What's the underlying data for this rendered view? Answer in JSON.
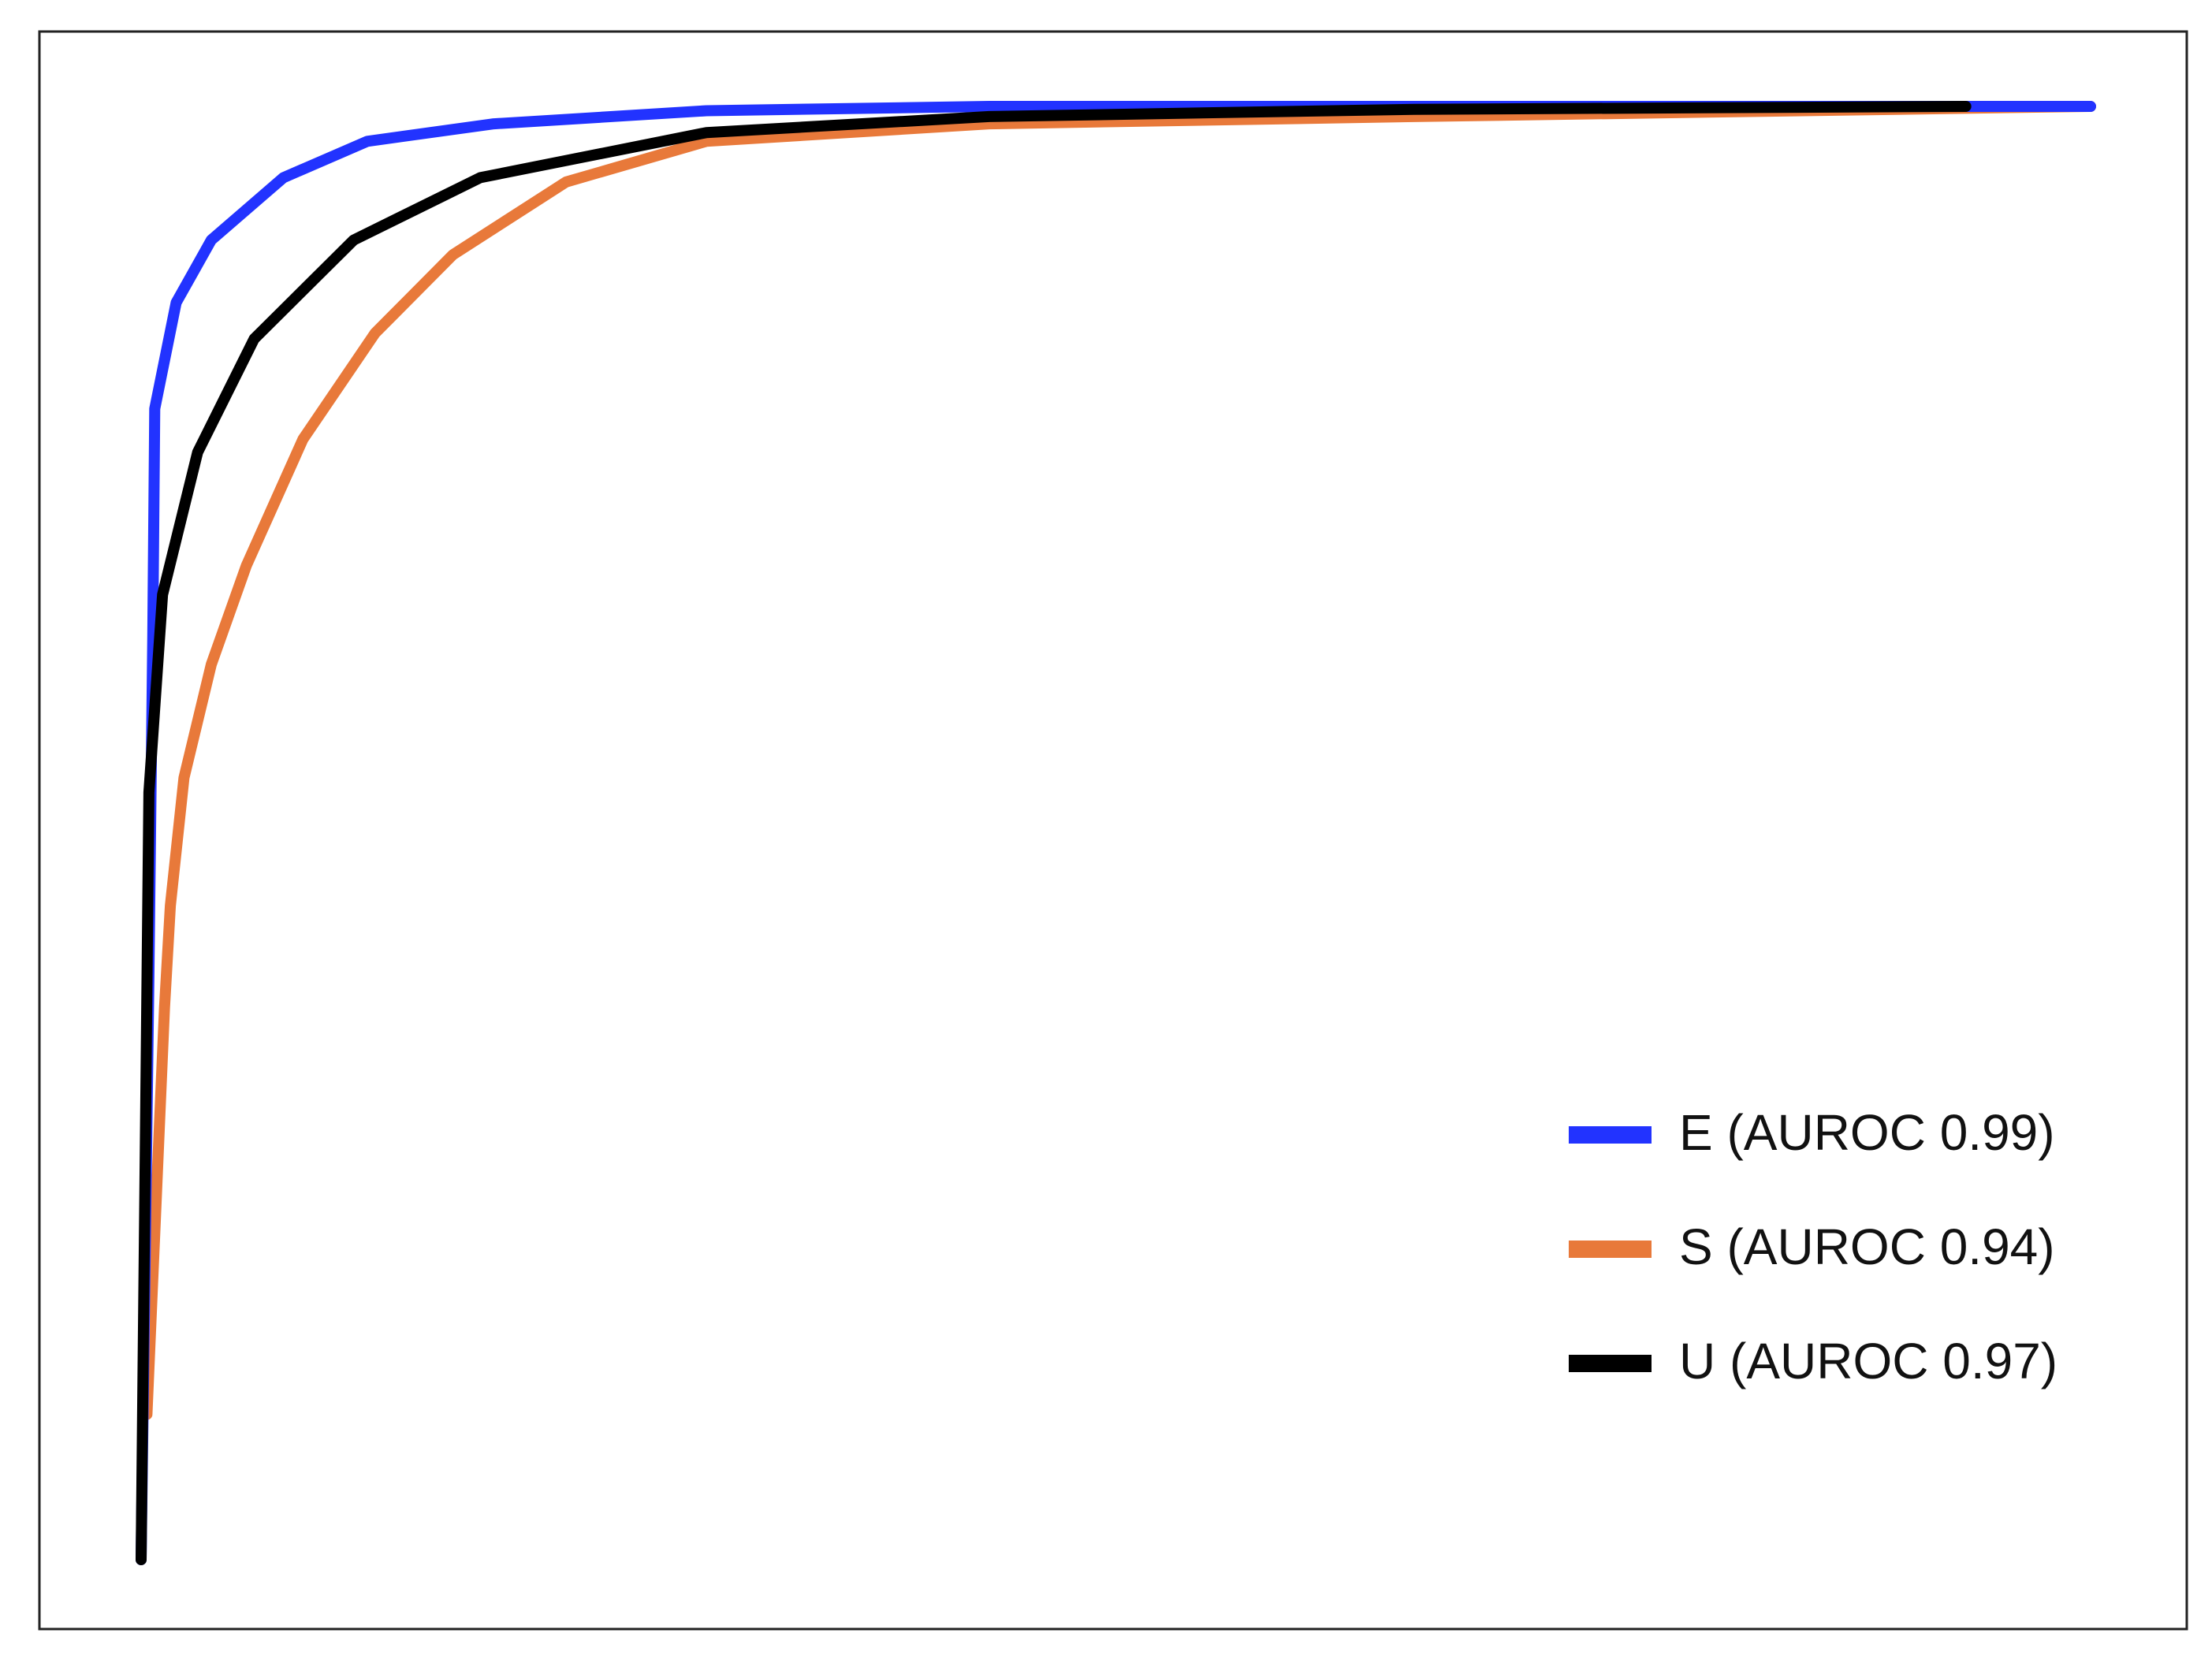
{
  "chart_data": {
    "type": "line",
    "xlim": [
      0,
      1
    ],
    "ylim": [
      0,
      1
    ],
    "grid": false,
    "legend": "lower-right",
    "series": [
      {
        "name": "E (AUROC 0.99)",
        "color": "#2233ff",
        "x": [
          0,
          0.004,
          0.006,
          0.007,
          0.018,
          0.036,
          0.073,
          0.116,
          0.181,
          0.29,
          0.435,
          1
        ],
        "values": [
          0,
          0.402,
          0.635,
          0.792,
          0.865,
          0.908,
          0.951,
          0.976,
          0.988,
          0.997,
          1,
          1
        ]
      },
      {
        "name": "S (AUROC 0.94)",
        "color": "#e8793a",
        "x": [
          0.003,
          0.012,
          0.015,
          0.022,
          0.036,
          0.054,
          0.083,
          0.12,
          0.16,
          0.218,
          0.29,
          0.435,
          0.653,
          1
        ],
        "values": [
          0.1,
          0.38,
          0.45,
          0.538,
          0.616,
          0.684,
          0.771,
          0.844,
          0.898,
          0.948,
          0.976,
          0.988,
          0.993,
          1
        ]
      },
      {
        "name": "U (AUROC 0.97)",
        "color": "#000000",
        "x": [
          0,
          0.004,
          0.011,
          0.029,
          0.058,
          0.109,
          0.174,
          0.29,
          0.435,
          0.653,
          0.936
        ],
        "values": [
          0,
          0.528,
          0.664,
          0.762,
          0.84,
          0.908,
          0.951,
          0.982,
          0.993,
          0.998,
          1
        ]
      }
    ]
  }
}
